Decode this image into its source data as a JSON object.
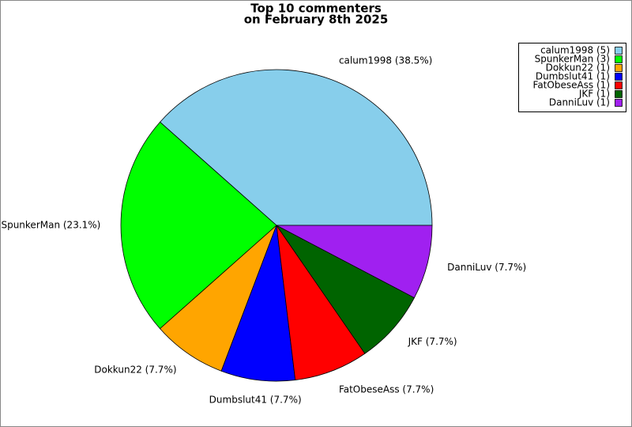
{
  "chart_data": {
    "type": "pie",
    "title": "Top 10 commenters",
    "subtitle": "on February 8th 2025",
    "categories": [
      "calum1998",
      "SpunkerMan",
      "Dokkun22",
      "Dumbslut41",
      "FatObeseAss",
      "JKF",
      "DanniLuv"
    ],
    "values": [
      38.5,
      23.1,
      7.7,
      7.7,
      7.7,
      7.7,
      7.7
    ],
    "value_labels": [
      "calum1998 (38.5%)",
      "SpunkerMan (23.1%)",
      "Dokkun22 (7.7%)",
      "Dumbslut41 (7.7%)",
      "FatObeseAss (7.7%)",
      "JKF (7.7%)",
      "DanniLuv (7.7%)"
    ],
    "legend_labels": [
      "calum1998 (5)",
      "SpunkerMan (3)",
      "Dokkun22 (1)",
      "Dumbslut41 (1)",
      "FatObeseAss (1)",
      "JKF (1)",
      "DanniLuv (1)"
    ],
    "colors": [
      "#87ceeb",
      "#00ff00",
      "#ffa500",
      "#0000ff",
      "#ff0000",
      "#006400",
      "#a020f0"
    ],
    "legend_position": "upper right"
  }
}
